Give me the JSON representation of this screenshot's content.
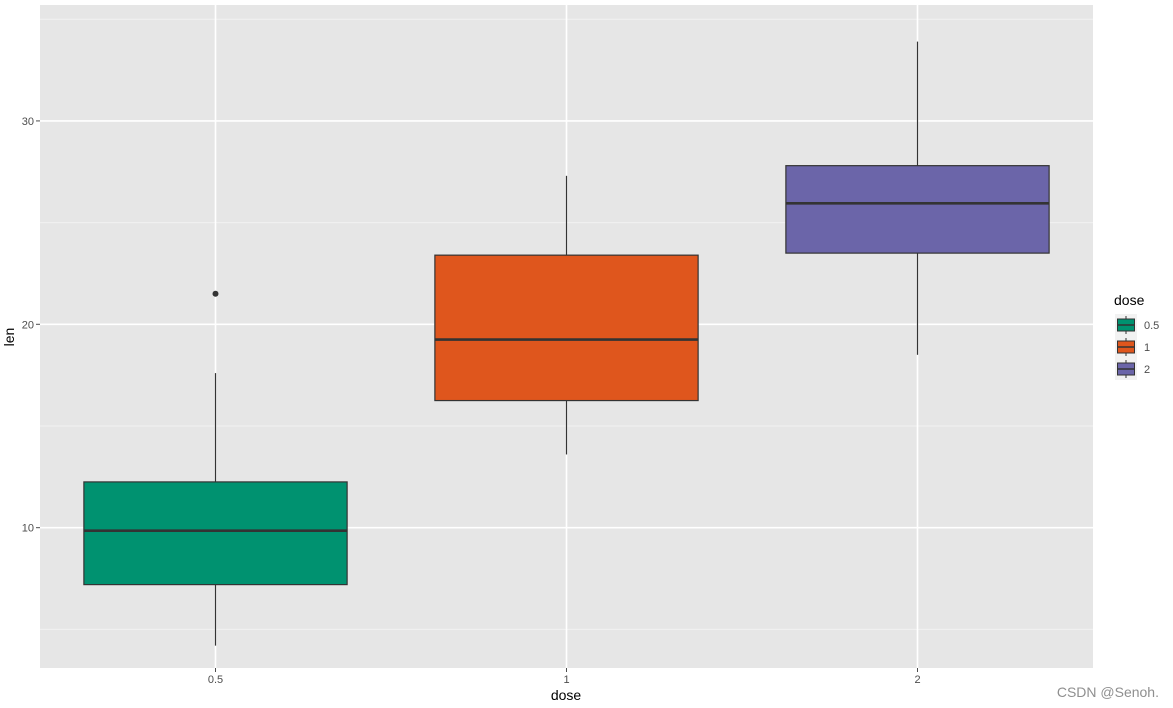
{
  "chart_data": {
    "type": "box",
    "xlabel": "dose",
    "ylabel": "len",
    "categories": [
      "0.5",
      "1",
      "2"
    ],
    "ylim": [
      3.1,
      35.7
    ],
    "yticks": [
      10,
      20,
      30
    ],
    "boxes": [
      {
        "category": "0.5",
        "min": 4.2,
        "q1": 7.2,
        "median": 9.85,
        "q3": 12.25,
        "max": 17.6,
        "outliers": [
          21.5
        ],
        "fill": "#009270"
      },
      {
        "category": "1",
        "min": 13.6,
        "q1": 16.25,
        "median": 19.25,
        "q3": 23.4,
        "max": 27.3,
        "outliers": [],
        "fill": "#df561d"
      },
      {
        "category": "2",
        "min": 18.5,
        "q1": 23.5,
        "median": 25.95,
        "q3": 27.8,
        "max": 33.9,
        "outliers": [],
        "fill": "#6b65a9"
      }
    ],
    "legend": {
      "title": "dose",
      "placement": "right",
      "items": [
        "0.5",
        "1",
        "2"
      ]
    },
    "colors": {
      "panel_background": "#e6e6e6",
      "grid_major": "#ffffff",
      "grid_minor": "#f2f2f2",
      "box_outline": "#333333"
    }
  },
  "watermark": "CSDN @Senoh."
}
